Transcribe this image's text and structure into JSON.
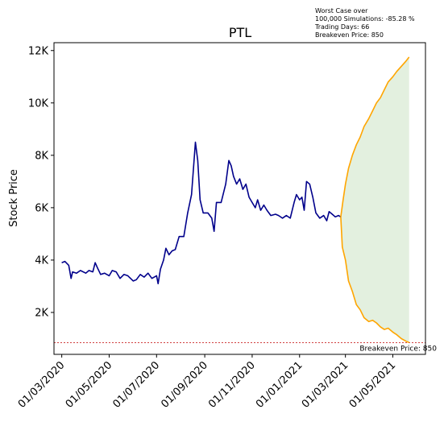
{
  "chart_data": {
    "type": "line",
    "title": "PTL",
    "ylabel": "Stock Price",
    "xlabel": "",
    "ylim": [
      400,
      12300
    ],
    "yticks": [
      {
        "value": 2000,
        "label": "2K"
      },
      {
        "value": 4000,
        "label": "4K"
      },
      {
        "value": 6000,
        "label": "6K"
      },
      {
        "value": 8000,
        "label": "8K"
      },
      {
        "value": 10000,
        "label": "10K"
      },
      {
        "value": 12000,
        "label": "12K"
      }
    ],
    "xlim": [
      "2020-02-20",
      "2021-06-12"
    ],
    "xticks": [
      {
        "value": "2020-03-01",
        "label": "01/03/2020"
      },
      {
        "value": "2020-05-01",
        "label": "01/05/2020"
      },
      {
        "value": "2020-07-01",
        "label": "01/07/2020"
      },
      {
        "value": "2020-09-01",
        "label": "01/09/2020"
      },
      {
        "value": "2020-11-01",
        "label": "01/11/2020"
      },
      {
        "value": "2021-01-01",
        "label": "01/01/2021"
      },
      {
        "value": "2021-03-01",
        "label": "01/03/2021"
      },
      {
        "value": "2021-05-01",
        "label": "01/05/2021"
      }
    ],
    "colors": {
      "history": "#00008b",
      "simulation": "#ffa500",
      "band_fill": "#e3f0df",
      "breakeven": "#c00000"
    },
    "history": [
      [
        "2020-03-01",
        3900
      ],
      [
        "2020-03-05",
        3950
      ],
      [
        "2020-03-10",
        3800
      ],
      [
        "2020-03-13",
        3300
      ],
      [
        "2020-03-15",
        3550
      ],
      [
        "2020-03-20",
        3500
      ],
      [
        "2020-03-25",
        3600
      ],
      [
        "2020-04-01",
        3500
      ],
      [
        "2020-04-05",
        3600
      ],
      [
        "2020-04-10",
        3550
      ],
      [
        "2020-04-13",
        3900
      ],
      [
        "2020-04-16",
        3700
      ],
      [
        "2020-04-20",
        3450
      ],
      [
        "2020-04-25",
        3500
      ],
      [
        "2020-05-01",
        3400
      ],
      [
        "2020-05-05",
        3600
      ],
      [
        "2020-05-10",
        3550
      ],
      [
        "2020-05-15",
        3300
      ],
      [
        "2020-05-20",
        3450
      ],
      [
        "2020-05-25",
        3400
      ],
      [
        "2020-06-01",
        3200
      ],
      [
        "2020-06-05",
        3250
      ],
      [
        "2020-06-10",
        3450
      ],
      [
        "2020-06-15",
        3350
      ],
      [
        "2020-06-20",
        3500
      ],
      [
        "2020-06-25",
        3300
      ],
      [
        "2020-07-01",
        3400
      ],
      [
        "2020-07-03",
        3100
      ],
      [
        "2020-07-06",
        3650
      ],
      [
        "2020-07-10",
        4000
      ],
      [
        "2020-07-13",
        4450
      ],
      [
        "2020-07-17",
        4200
      ],
      [
        "2020-07-21",
        4350
      ],
      [
        "2020-07-25",
        4400
      ],
      [
        "2020-07-30",
        4900
      ],
      [
        "2020-08-05",
        4900
      ],
      [
        "2020-08-10",
        5800
      ],
      [
        "2020-08-15",
        6500
      ],
      [
        "2020-08-20",
        8500
      ],
      [
        "2020-08-23",
        7800
      ],
      [
        "2020-08-26",
        6300
      ],
      [
        "2020-08-30",
        5800
      ],
      [
        "2020-09-05",
        5800
      ],
      [
        "2020-09-10",
        5600
      ],
      [
        "2020-09-13",
        5100
      ],
      [
        "2020-09-16",
        6200
      ],
      [
        "2020-09-22",
        6200
      ],
      [
        "2020-09-28",
        6900
      ],
      [
        "2020-10-02",
        7800
      ],
      [
        "2020-10-05",
        7600
      ],
      [
        "2020-10-08",
        7200
      ],
      [
        "2020-10-12",
        6900
      ],
      [
        "2020-10-16",
        7100
      ],
      [
        "2020-10-20",
        6700
      ],
      [
        "2020-10-24",
        6900
      ],
      [
        "2020-10-28",
        6400
      ],
      [
        "2020-11-01",
        6200
      ],
      [
        "2020-11-05",
        6000
      ],
      [
        "2020-11-08",
        6300
      ],
      [
        "2020-11-12",
        5900
      ],
      [
        "2020-11-16",
        6100
      ],
      [
        "2020-11-20",
        5900
      ],
      [
        "2020-11-25",
        5700
      ],
      [
        "2020-12-01",
        5750
      ],
      [
        "2020-12-05",
        5700
      ],
      [
        "2020-12-10",
        5600
      ],
      [
        "2020-12-15",
        5700
      ],
      [
        "2020-12-20",
        5600
      ],
      [
        "2020-12-25",
        6200
      ],
      [
        "2020-12-28",
        6500
      ],
      [
        "2021-01-01",
        6300
      ],
      [
        "2021-01-04",
        6400
      ],
      [
        "2021-01-07",
        5900
      ],
      [
        "2021-01-10",
        7000
      ],
      [
        "2021-01-14",
        6900
      ],
      [
        "2021-01-18",
        6400
      ],
      [
        "2021-01-22",
        5800
      ],
      [
        "2021-01-27",
        5600
      ],
      [
        "2021-02-01",
        5700
      ],
      [
        "2021-02-05",
        5500
      ],
      [
        "2021-02-08",
        5850
      ],
      [
        "2021-02-12",
        5750
      ],
      [
        "2021-02-16",
        5650
      ],
      [
        "2021-02-20",
        5700
      ],
      [
        "2021-02-23",
        5650
      ]
    ],
    "simulation_upper": [
      [
        "2021-02-23",
        5650
      ],
      [
        "2021-02-26",
        6300
      ],
      [
        "2021-03-01",
        6900
      ],
      [
        "2021-03-05",
        7500
      ],
      [
        "2021-03-10",
        8000
      ],
      [
        "2021-03-15",
        8400
      ],
      [
        "2021-03-20",
        8700
      ],
      [
        "2021-03-25",
        9100
      ],
      [
        "2021-03-31",
        9400
      ],
      [
        "2021-04-05",
        9700
      ],
      [
        "2021-04-10",
        10000
      ],
      [
        "2021-04-15",
        10200
      ],
      [
        "2021-04-20",
        10500
      ],
      [
        "2021-04-25",
        10800
      ],
      [
        "2021-05-01",
        11000
      ],
      [
        "2021-05-06",
        11200
      ],
      [
        "2021-05-12",
        11400
      ],
      [
        "2021-05-18",
        11600
      ],
      [
        "2021-05-22",
        11750
      ]
    ],
    "simulation_lower": [
      [
        "2021-02-23",
        5650
      ],
      [
        "2021-02-25",
        4500
      ],
      [
        "2021-03-01",
        4000
      ],
      [
        "2021-03-05",
        3200
      ],
      [
        "2021-03-10",
        2800
      ],
      [
        "2021-03-15",
        2300
      ],
      [
        "2021-03-20",
        2100
      ],
      [
        "2021-03-25",
        1800
      ],
      [
        "2021-03-31",
        1650
      ],
      [
        "2021-04-05",
        1700
      ],
      [
        "2021-04-10",
        1600
      ],
      [
        "2021-04-15",
        1450
      ],
      [
        "2021-04-20",
        1350
      ],
      [
        "2021-04-25",
        1400
      ],
      [
        "2021-05-01",
        1250
      ],
      [
        "2021-05-06",
        1150
      ],
      [
        "2021-05-12",
        1000
      ],
      [
        "2021-05-18",
        900
      ],
      [
        "2021-05-22",
        850
      ]
    ],
    "breakeven": 850,
    "breakeven_label": "Breakeven Price: 850",
    "annotation_lines": [
      "Worst Case over",
      "100,000 Simulations: -85.28 %",
      "Trading Days: 66",
      "Breakeven Price: 850"
    ]
  }
}
